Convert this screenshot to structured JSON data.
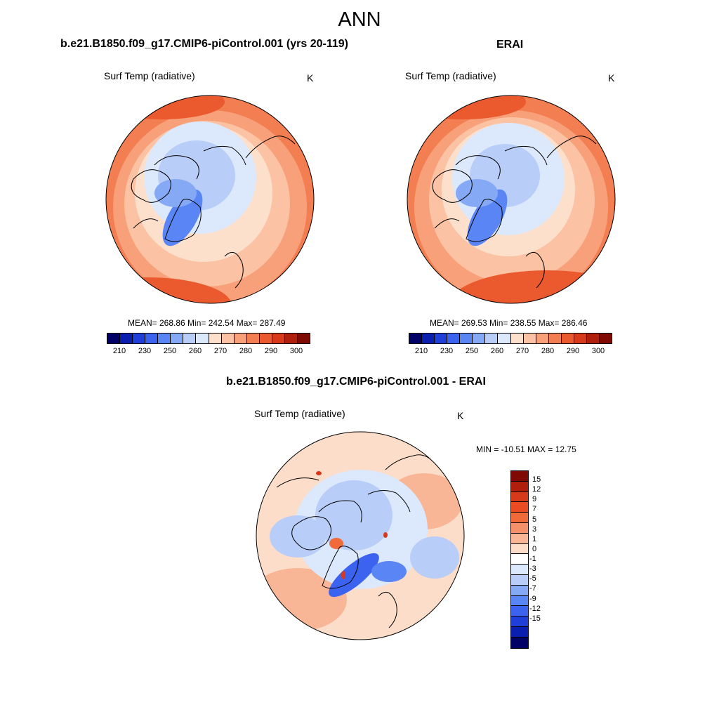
{
  "main_title": "ANN",
  "panels": [
    {
      "title": "b.e21.B1850.f09_g17.CMIP6-piControl.001 (yrs 20-119)",
      "variable": "Surf Temp (radiative)",
      "units": "K",
      "stats": "MEAN= 268.86  Min= 242.54  Max= 287.49",
      "colorbar_ticks": [
        "210",
        "230",
        "250",
        "260",
        "270",
        "280",
        "290",
        "300"
      ]
    },
    {
      "title": "ERAI",
      "variable": "Surf Temp (radiative)",
      "units": "K",
      "stats": "MEAN= 269.53  Min= 238.55  Max= 286.46",
      "colorbar_ticks": [
        "210",
        "230",
        "250",
        "260",
        "270",
        "280",
        "290",
        "300"
      ]
    },
    {
      "title": "b.e21.B1850.f09_g17.CMIP6-piControl.001 - ERAI",
      "variable": "Surf Temp (radiative)",
      "units": "K",
      "stats": "MIN = -10.51 MAX =  12.75",
      "colorbar_ticks": [
        "15",
        "12",
        "9",
        "7",
        "5",
        "3",
        "1",
        "0",
        "-1",
        "-3",
        "-5",
        "-7",
        "-9",
        "-12",
        "-15"
      ]
    }
  ],
  "abs_colors": [
    "#000066",
    "#0a1fb0",
    "#1f3fd8",
    "#3b63f0",
    "#5a86f5",
    "#86a9f5",
    "#b8cdf8",
    "#dce8fb",
    "#fde0cc",
    "#fbc2a4",
    "#f8a07a",
    "#f27e52",
    "#ea5a2e",
    "#d63a1a",
    "#b01e0c",
    "#7f0a04"
  ],
  "diff_colors": [
    "#7f0a04",
    "#b01e0c",
    "#d63a1a",
    "#ea4b22",
    "#f06a3a",
    "#f4906a",
    "#f8b696",
    "#fcddc9",
    "#ffffff",
    "#dce8fb",
    "#b8cdf8",
    "#86a9f5",
    "#5a86f5",
    "#3b63f0",
    "#1f3fd8",
    "#0a1fb0",
    "#000066"
  ]
}
